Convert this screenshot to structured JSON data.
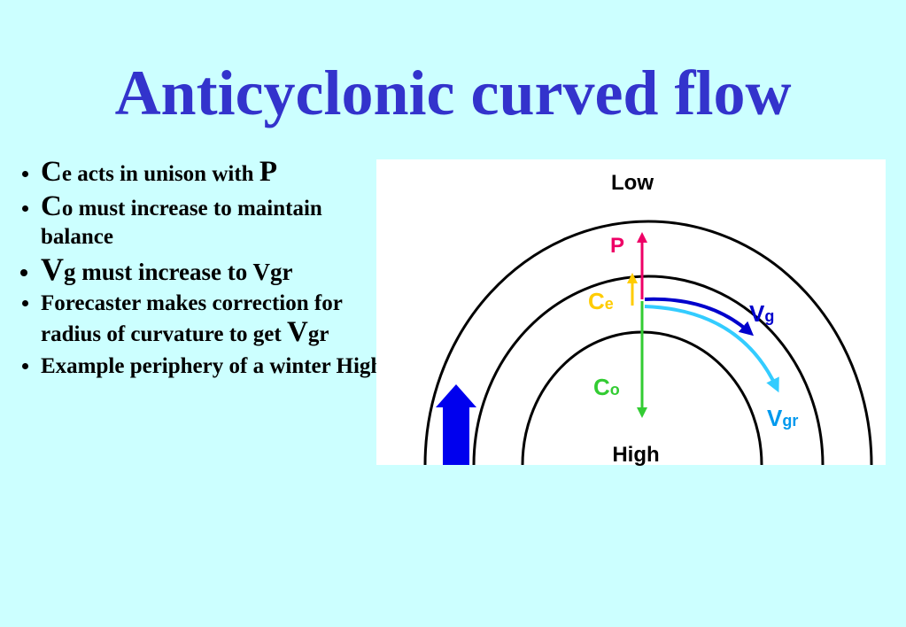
{
  "title": "Anticyclonic curved flow",
  "bullets": [
    [
      "C",
      "e acts in unison with",
      "P"
    ],
    [
      "C",
      "o must increase to maintain balance"
    ],
    [
      "V",
      "g must increase to Vgr"
    ],
    [
      "Forecaster makes correction for radius of curvature to get",
      "V",
      "gr"
    ],
    [
      "Example periphery of a winter High"
    ]
  ],
  "diagram": {
    "low": "Low",
    "high": "High",
    "p": "P",
    "ce": {
      "main": "C",
      "sub": "e"
    },
    "co": {
      "main": "C",
      "sub": "o"
    },
    "vg": {
      "main": "V",
      "sub": "g"
    },
    "vgr": {
      "main": "V",
      "sub": "gr"
    }
  }
}
